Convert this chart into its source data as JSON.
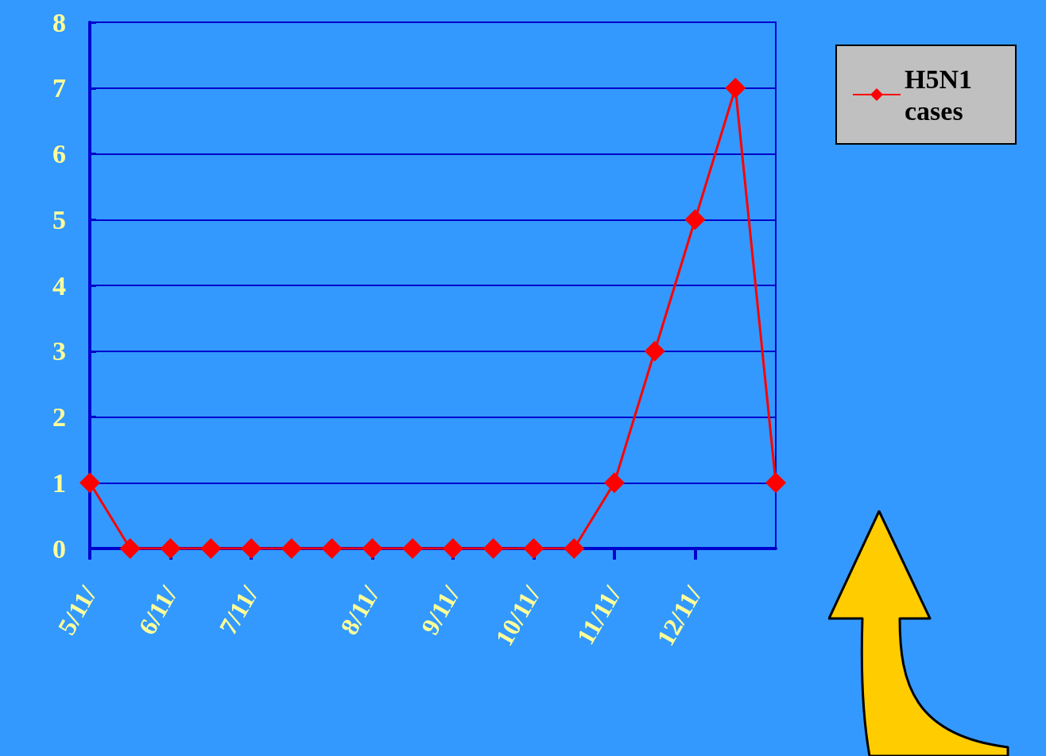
{
  "chart_data": {
    "type": "line",
    "categories": [
      "5/11/",
      null,
      "6/11/",
      null,
      "7/11/",
      null,
      null,
      "8/11/",
      null,
      "9/11/",
      null,
      "10/11/",
      null,
      "11/11/",
      null,
      "12/11/",
      null,
      null
    ],
    "series": [
      {
        "name": "H5N1 cases",
        "color": "#ff0000",
        "values": [
          1,
          0,
          0,
          0,
          0,
          0,
          0,
          0,
          0,
          0,
          0,
          0,
          0,
          1,
          3,
          5,
          7,
          1
        ]
      }
    ],
    "ylim": [
      0,
      8
    ],
    "yticks": [
      0,
      1,
      2,
      3,
      4,
      5,
      6,
      7,
      8
    ],
    "grid": "y",
    "legend": "top right",
    "marker": "diamond",
    "line_style": "solid"
  }
}
